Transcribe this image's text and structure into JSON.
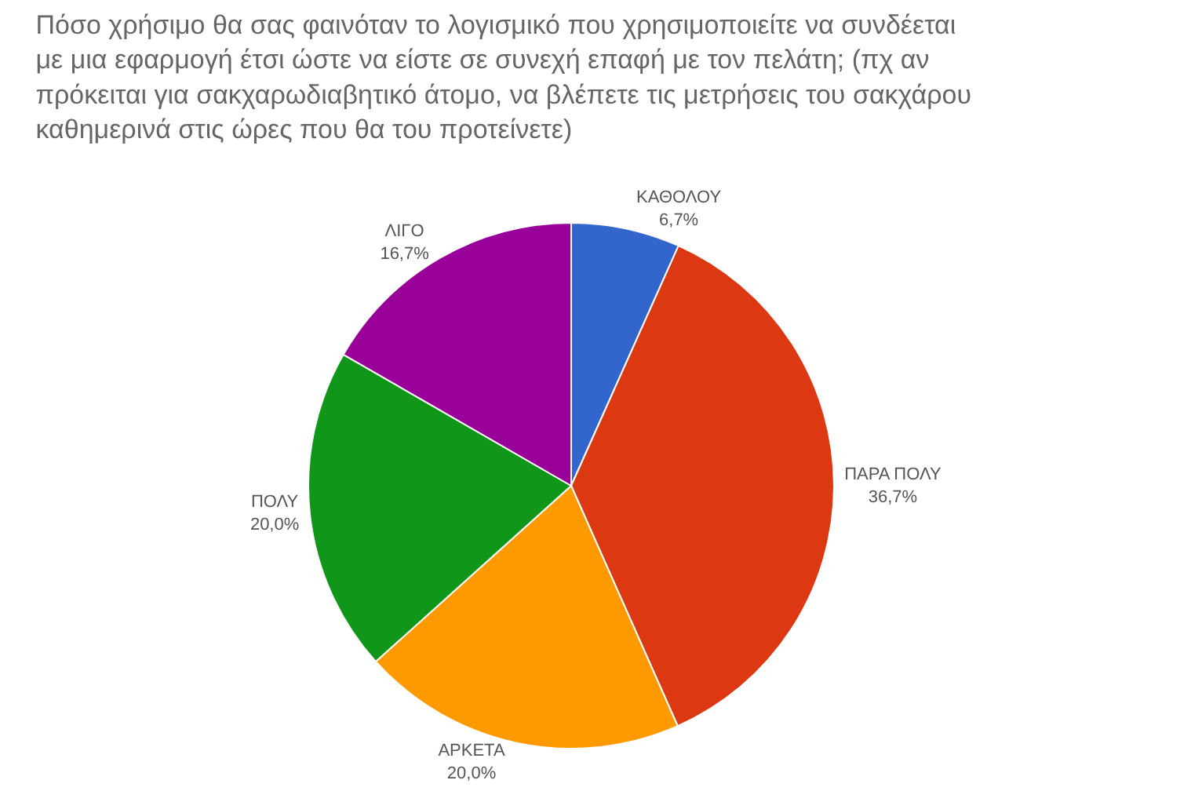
{
  "chart_data": {
    "type": "pie",
    "title": "Πόσο χρήσιμο θα σας φαινόταν το λογισμικό που χρησιμοποιείτε να συνδέεται με μια εφαρμογή έτσι ώστε να είστε σε συνεχή επαφή με τον πελάτη; (πχ αν πρόκειται για σακχαρωδιαβητικό άτομο, να βλέπετε τις μετρήσεις του σακχάρου καθημερινά στις ώρες που θα του προτείνετε)",
    "categories": [
      "ΚΑΘΟΛΟΥ",
      "ΠΑΡΑ ΠΟΛΥ",
      "ΑΡΚΕΤΑ",
      "ΠΟΛΥ",
      "ΛΙΓΟ"
    ],
    "values": [
      6.7,
      36.7,
      20.0,
      20.0,
      16.7
    ],
    "value_labels": [
      "6,7%",
      "36,7%",
      "20,0%",
      "20,0%",
      "16,7%"
    ],
    "colors": [
      "#3366cc",
      "#dc3912",
      "#ff9900",
      "#109618",
      "#990099"
    ],
    "legend": false
  }
}
